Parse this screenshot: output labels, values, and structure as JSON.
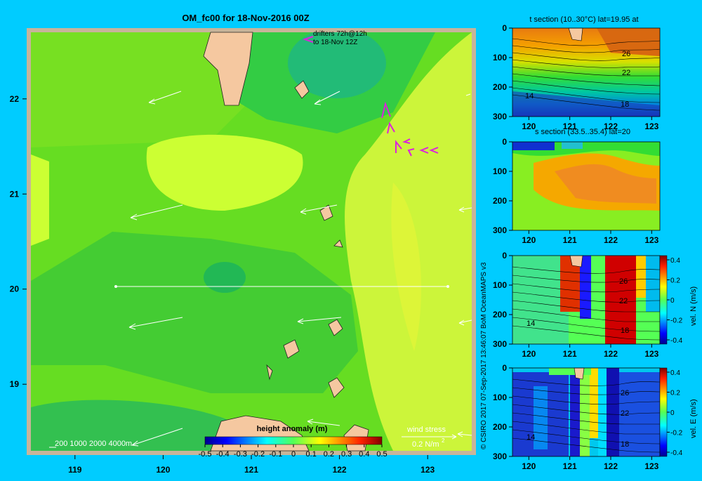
{
  "background_color": "#00ccff",
  "main_map": {
    "title": "OM_fc00 for 18-Nov-2016 00Z",
    "drifters_label_1": "drifters 72h@12h",
    "drifters_label_2": "to 18-Nov 12Z",
    "depth_contours_label": "200  1000  2000  4000m",
    "wind_stress_label": "wind stress",
    "wind_stress_scale": "0.2 N/m",
    "wind_stress_exp": "2",
    "x_ticks": [
      "119",
      "120",
      "121",
      "122",
      "123"
    ],
    "y_ticks": [
      "22",
      "21",
      "20",
      "19"
    ],
    "xlim": [
      118.5,
      123.5
    ],
    "ylim": [
      18.3,
      22.7
    ],
    "section_line_lat": 20,
    "section_line_lon": [
      119.5,
      123.2
    ],
    "land_color": "#f5c8a0"
  },
  "colorbar_main": {
    "label": "height anomaly (m)",
    "ticks": [
      "-0.5",
      "-0.4",
      "-0.3",
      "-0.2",
      "-0.1",
      "0",
      "0.1",
      "0.2",
      "0.3",
      "0.4",
      "0.5"
    ],
    "range": [
      -0.5,
      0.5
    ]
  },
  "credit": "© CSIRO 2017    07-Sep-2017 13:46:07 BoM OceanMAPS v3",
  "panels": [
    {
      "title": "t section (10..30°C) lat=19.95 at",
      "x_ticks": [
        "120",
        "121",
        "122",
        "123"
      ],
      "y_ticks": [
        "0",
        "100",
        "200",
        "300"
      ],
      "contour_labels": [
        "26",
        "22",
        "18",
        "14"
      ]
    },
    {
      "title": "s section (33.5..35.4) lat=20",
      "x_ticks": [
        "120",
        "121",
        "122",
        "123"
      ],
      "y_ticks": [
        "0",
        "100",
        "200",
        "300"
      ]
    },
    {
      "title": "",
      "x_ticks": [
        "120",
        "121",
        "122",
        "123"
      ],
      "y_ticks": [
        "0",
        "100",
        "200",
        "300"
      ],
      "contour_labels": [
        "26",
        "22",
        "18",
        "14"
      ],
      "colorbar_label": "vel. N  (m/s)",
      "colorbar_ticks": [
        "0.4",
        "0.2",
        "0",
        "-0.2",
        "-0.4"
      ]
    },
    {
      "title": "",
      "x_ticks": [
        "120",
        "121",
        "122",
        "123"
      ],
      "y_ticks": [
        "0",
        "100",
        "200",
        "300"
      ],
      "contour_labels": [
        "26",
        "22",
        "18",
        "14"
      ],
      "colorbar_label": "vel. E  (m/s)",
      "colorbar_ticks": [
        "0.4",
        "0.2",
        "0",
        "-0.2",
        "-0.4"
      ]
    }
  ],
  "chart_data": [
    {
      "type": "heatmap",
      "title": "OM_fc00 for 18-Nov-2016 00Z",
      "xlabel": "",
      "ylabel": "",
      "xlim": [
        118.5,
        123.5
      ],
      "ylim": [
        18.3,
        22.7
      ],
      "colorbar": {
        "label": "height anomaly (m)",
        "range": [
          -0.5,
          0.5
        ]
      },
      "field_approx": "height anomaly mostly 0 to 0.15 m; higher (~0.15) east of 122.3E and around 21.2N 120.5E; lower (~0) near 22.5N 121.8E",
      "wind_stress_arrows": "westward to west-south-westward across the domain"
    },
    {
      "type": "heatmap",
      "title": "t section (10..30°C) lat=19.95 at",
      "xlim": [
        119.6,
        123.2
      ],
      "ylim": [
        300,
        0
      ],
      "x_ticks": [
        120,
        121,
        122,
        123
      ],
      "y_ticks": [
        0,
        100,
        200,
        300
      ],
      "contour_labels": [
        26,
        22,
        18,
        14
      ]
    },
    {
      "type": "heatmap",
      "title": "s section (33.5..35.4) lat=20",
      "xlim": [
        119.6,
        123.2
      ],
      "ylim": [
        300,
        0
      ],
      "x_ticks": [
        120,
        121,
        122,
        123
      ],
      "y_ticks": [
        0,
        100,
        200,
        300
      ]
    },
    {
      "type": "heatmap",
      "xlim": [
        119.6,
        123.2
      ],
      "ylim": [
        300,
        0
      ],
      "x_ticks": [
        120,
        121,
        122,
        123
      ],
      "y_ticks": [
        0,
        100,
        200,
        300
      ],
      "colorbar": {
        "label": "vel. N  (m/s)",
        "range": [
          -0.4,
          0.4
        ]
      },
      "contour_labels": [
        26,
        22,
        18,
        14
      ]
    },
    {
      "type": "heatmap",
      "xlim": [
        119.6,
        123.2
      ],
      "ylim": [
        300,
        0
      ],
      "x_ticks": [
        120,
        121,
        122,
        123
      ],
      "y_ticks": [
        0,
        100,
        200,
        300
      ],
      "colorbar": {
        "label": "vel. E  (m/s)",
        "range": [
          -0.4,
          0.4
        ]
      },
      "contour_labels": [
        26,
        22,
        18,
        14
      ]
    }
  ]
}
